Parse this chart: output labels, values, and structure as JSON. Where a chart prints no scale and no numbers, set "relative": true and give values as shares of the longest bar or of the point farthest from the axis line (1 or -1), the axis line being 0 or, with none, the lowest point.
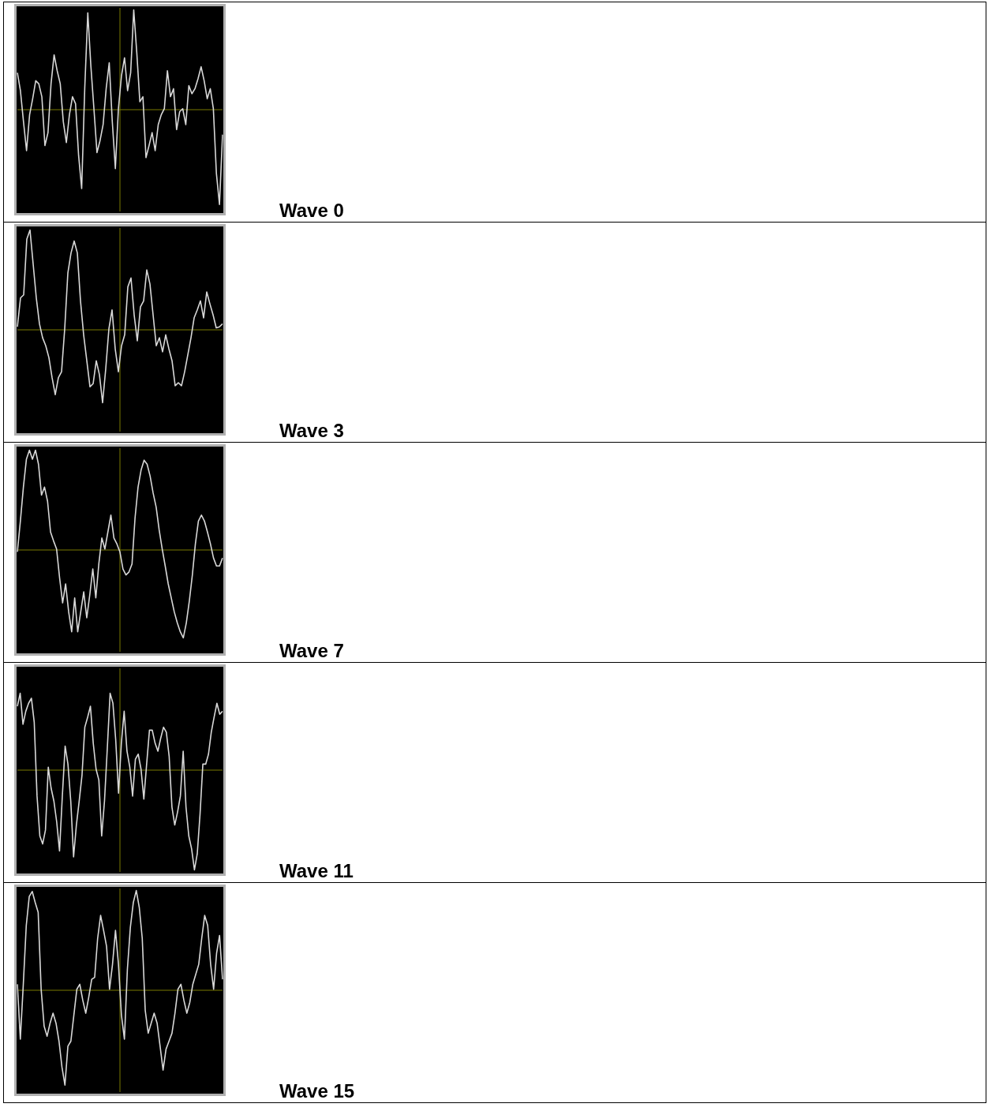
{
  "chart_data": [
    {
      "type": "line",
      "annotations": [
        "Wave 0"
      ],
      "relative": true,
      "ref_lines": [
        {
          "axis": "y",
          "value": 0,
          "color": "#7a7a00"
        }
      ],
      "color": "#d8d8d8",
      "categories": [
        null,
        null,
        null,
        null,
        null,
        null,
        null,
        null,
        null,
        null,
        null,
        null,
        null,
        null,
        null,
        null,
        null,
        null,
        null,
        null,
        null,
        null,
        null,
        null,
        null,
        null,
        null,
        null,
        null,
        null,
        null,
        null,
        null,
        null,
        null,
        null,
        null,
        null,
        null,
        null,
        null,
        null,
        null,
        null,
        null,
        null,
        null,
        null,
        null,
        null,
        null,
        null,
        null,
        null,
        null,
        null,
        null,
        null,
        null,
        null,
        null,
        null,
        null,
        null,
        null,
        null,
        null,
        null
      ],
      "values": [
        0.37,
        0.19,
        -0.12,
        -0.41,
        -0.05,
        0.11,
        0.29,
        0.26,
        0.13,
        -0.36,
        -0.23,
        0.26,
        0.55,
        0.39,
        0.26,
        -0.12,
        -0.33,
        -0.05,
        0.13,
        0.06,
        -0.46,
        -0.79,
        0.21,
        0.97,
        0.44,
        0.01,
        -0.43,
        -0.31,
        -0.15,
        0.21,
        0.47,
        -0.12,
        -0.59,
        0.01,
        0.34,
        0.52,
        0.19,
        0.37,
        1,
        0.57,
        0.08,
        0.13,
        -0.48,
        -0.36,
        -0.23,
        -0.41,
        -0.15,
        -0.05,
        0.01,
        0.39,
        0.13,
        0.21,
        -0.2,
        -0.02,
        0.01,
        -0.15,
        0.24,
        0.16,
        0.21,
        0.31,
        0.43,
        0.29,
        0.11,
        0.21,
        0.01,
        -0.64,
        -0.95,
        -0.25
      ]
    },
    {
      "type": "line",
      "annotations": [
        "Wave 3"
      ],
      "relative": true,
      "ref_lines": [
        {
          "axis": "y",
          "value": 0,
          "color": "#7a7a00"
        }
      ],
      "color": "#d8d8d8",
      "categories": [
        null,
        null,
        null,
        null,
        null,
        null,
        null,
        null,
        null,
        null,
        null,
        null,
        null,
        null,
        null,
        null,
        null,
        null,
        null,
        null,
        null,
        null,
        null,
        null,
        null,
        null,
        null,
        null,
        null,
        null,
        null,
        null,
        null,
        null,
        null,
        null,
        null,
        null,
        null,
        null,
        null,
        null,
        null,
        null,
        null,
        null,
        null,
        null,
        null,
        null,
        null,
        null,
        null,
        null,
        null,
        null,
        null,
        null,
        null,
        null,
        null,
        null,
        null,
        null,
        null,
        null
      ],
      "values": [
        0.03,
        0.32,
        0.35,
        0.91,
        1,
        0.66,
        0.32,
        0.06,
        -0.08,
        -0.16,
        -0.28,
        -0.48,
        -0.65,
        -0.48,
        -0.42,
        0.01,
        0.57,
        0.77,
        0.89,
        0.77,
        0.29,
        -0.05,
        -0.31,
        -0.57,
        -0.54,
        -0.31,
        -0.45,
        -0.73,
        -0.39,
        0.01,
        0.2,
        -0.19,
        -0.42,
        -0.16,
        -0.05,
        0.43,
        0.52,
        0.15,
        -0.11,
        0.23,
        0.29,
        0.6,
        0.46,
        0.15,
        -0.16,
        -0.08,
        -0.22,
        -0.05,
        -0.19,
        -0.31,
        -0.56,
        -0.53,
        -0.56,
        -0.42,
        -0.25,
        -0.08,
        0.12,
        0.2,
        0.29,
        0.12,
        0.38,
        0.26,
        0.15,
        0.02,
        0.03,
        0.06
      ]
    },
    {
      "type": "line",
      "annotations": [
        "Wave 7"
      ],
      "relative": true,
      "ref_lines": [
        {
          "axis": "y",
          "value": 0,
          "color": "#7a7a00"
        }
      ],
      "color": "#d8d8d8",
      "categories": [
        null,
        null,
        null,
        null,
        null,
        null,
        null,
        null,
        null,
        null,
        null,
        null,
        null,
        null,
        null,
        null,
        null,
        null,
        null,
        null,
        null,
        null,
        null,
        null,
        null,
        null,
        null,
        null,
        null,
        null,
        null,
        null,
        null,
        null,
        null,
        null,
        null,
        null,
        null,
        null,
        null,
        null,
        null,
        null,
        null,
        null,
        null,
        null,
        null,
        null,
        null,
        null,
        null,
        null,
        null,
        null,
        null,
        null,
        null,
        null,
        null,
        null,
        null,
        null,
        null,
        null,
        null,
        null,
        null
      ],
      "values": [
        -0.02,
        0.29,
        0.63,
        0.91,
        1,
        0.91,
        1,
        0.86,
        0.55,
        0.63,
        0.49,
        0.18,
        0.09,
        0.01,
        -0.28,
        -0.53,
        -0.34,
        -0.62,
        -0.82,
        -0.48,
        -0.82,
        -0.62,
        -0.42,
        -0.68,
        -0.45,
        -0.19,
        -0.48,
        -0.14,
        0.12,
        0.01,
        0.18,
        0.35,
        0.12,
        0.06,
        -0.02,
        -0.19,
        -0.25,
        -0.22,
        -0.14,
        0.32,
        0.63,
        0.8,
        0.9,
        0.86,
        0.74,
        0.57,
        0.43,
        0.2,
        0.01,
        -0.16,
        -0.34,
        -0.48,
        -0.62,
        -0.73,
        -0.82,
        -0.88,
        -0.73,
        -0.51,
        -0.25,
        0.06,
        0.29,
        0.35,
        0.29,
        0.18,
        0.06,
        -0.08,
        -0.16,
        -0.16,
        -0.08
      ]
    },
    {
      "type": "line",
      "annotations": [
        "Wave 11"
      ],
      "relative": true,
      "ref_lines": [
        {
          "axis": "y",
          "value": 0,
          "color": "#7a7a00"
        }
      ],
      "color": "#d8d8d8",
      "categories": [
        null,
        null,
        null,
        null,
        null,
        null,
        null,
        null,
        null,
        null,
        null,
        null,
        null,
        null,
        null,
        null,
        null,
        null,
        null,
        null,
        null,
        null,
        null,
        null,
        null,
        null,
        null,
        null,
        null,
        null,
        null,
        null,
        null,
        null,
        null,
        null,
        null,
        null,
        null,
        null,
        null,
        null,
        null,
        null,
        null,
        null,
        null,
        null,
        null,
        null,
        null,
        null,
        null,
        null,
        null,
        null,
        null,
        null,
        null,
        null,
        null,
        null,
        null,
        null,
        null,
        null,
        null,
        null,
        null,
        null,
        null,
        null,
        null,
        null
      ],
      "values": [
        0.64,
        0.77,
        0.46,
        0.59,
        0.67,
        0.72,
        0.48,
        -0.26,
        -0.66,
        -0.74,
        -0.6,
        0.03,
        -0.18,
        -0.31,
        -0.52,
        -0.81,
        -0.26,
        0.24,
        0.06,
        -0.31,
        -0.87,
        -0.55,
        -0.31,
        -0.05,
        0.43,
        0.53,
        0.64,
        0.27,
        0.01,
        -0.1,
        -0.66,
        -0.31,
        0.22,
        0.77,
        0.67,
        0.3,
        -0.23,
        0.27,
        0.59,
        0.19,
        0.03,
        -0.26,
        0.11,
        0.16,
        0.01,
        -0.29,
        0.06,
        0.4,
        0.4,
        0.27,
        0.19,
        0.32,
        0.43,
        0.38,
        0.14,
        -0.37,
        -0.55,
        -0.42,
        -0.26,
        0.19,
        -0.37,
        -0.66,
        -0.79,
        -1,
        -0.84,
        -0.44,
        0.06,
        0.06,
        0.16,
        0.38,
        0.53,
        0.67,
        0.56,
        0.59
      ]
    },
    {
      "type": "line",
      "annotations": [
        "Wave 15"
      ],
      "relative": true,
      "ref_lines": [
        {
          "axis": "y",
          "value": 0,
          "color": "#7a7a00"
        }
      ],
      "color": "#d8d8d8",
      "categories": [
        null,
        null,
        null,
        null,
        null,
        null,
        null,
        null,
        null,
        null,
        null,
        null,
        null,
        null,
        null,
        null,
        null,
        null,
        null,
        null,
        null,
        null,
        null,
        null,
        null,
        null,
        null,
        null,
        null,
        null,
        null,
        null,
        null,
        null,
        null,
        null,
        null,
        null,
        null,
        null,
        null,
        null,
        null,
        null,
        null,
        null,
        null,
        null,
        null,
        null,
        null,
        null,
        null,
        null,
        null,
        null,
        null,
        null,
        null,
        null,
        null,
        null,
        null,
        null,
        null,
        null,
        null,
        null,
        null,
        null
      ],
      "values": [
        0.06,
        -0.49,
        0.06,
        0.65,
        0.94,
        0.99,
        0.88,
        0.78,
        0.01,
        -0.36,
        -0.46,
        -0.33,
        -0.23,
        -0.33,
        -0.51,
        -0.77,
        -0.95,
        -0.56,
        -0.51,
        -0.25,
        0.01,
        0.06,
        -0.1,
        -0.23,
        -0.07,
        0.11,
        0.13,
        0.52,
        0.75,
        0.6,
        0.44,
        0.01,
        0.26,
        0.6,
        0.26,
        -0.25,
        -0.49,
        0.21,
        0.63,
        0.88,
        1,
        0.83,
        0.52,
        -0.2,
        -0.43,
        -0.33,
        -0.23,
        -0.33,
        -0.56,
        -0.8,
        -0.59,
        -0.51,
        -0.43,
        -0.23,
        0.01,
        0.06,
        -0.1,
        -0.23,
        -0.12,
        0.06,
        0.16,
        0.26,
        0.52,
        0.75,
        0.65,
        0.26,
        0.01,
        0.37,
        0.55,
        0.11
      ]
    }
  ]
}
